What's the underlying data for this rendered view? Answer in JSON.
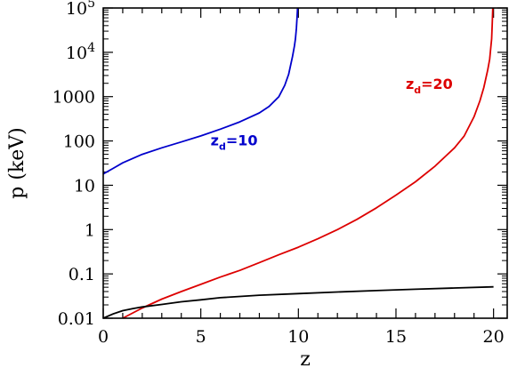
{
  "chart_data": {
    "type": "line",
    "xlabel": "z",
    "ylabel": "p  (keV)",
    "xlim": [
      0,
      20.7
    ],
    "ylim": [
      0.01,
      100000
    ],
    "yscale": "log",
    "xticks": [
      0,
      5,
      10,
      15,
      20
    ],
    "xtick_labels": [
      "0",
      "5",
      "10",
      "15",
      "20"
    ],
    "yticks": [
      0.01,
      0.1,
      1,
      10,
      100,
      1000,
      10000,
      100000
    ],
    "ytick_labels": [
      {
        "base": "0.01",
        "exp": ""
      },
      {
        "base": "0.1",
        "exp": ""
      },
      {
        "base": "1",
        "exp": ""
      },
      {
        "base": "10",
        "exp": ""
      },
      {
        "base": "100",
        "exp": ""
      },
      {
        "base": "1000",
        "exp": ""
      },
      {
        "base": "10",
        "exp": "4"
      },
      {
        "base": "10",
        "exp": "5"
      }
    ],
    "grid": false,
    "series": [
      {
        "color": "#0000cc",
        "x": [
          0,
          0.5,
          1,
          2,
          3,
          4,
          5,
          6,
          7,
          8,
          8.5,
          9,
          9.3,
          9.5,
          9.7,
          9.8,
          9.85,
          9.9,
          9.93,
          9.96
        ],
        "y": [
          18,
          24,
          32,
          50,
          70,
          95,
          130,
          185,
          270,
          430,
          600,
          1000,
          1800,
          3200,
          8000,
          14000,
          20000,
          35000,
          60000,
          100000
        ]
      },
      {
        "color": "#dd0000",
        "x": [
          1,
          2,
          3,
          4,
          5,
          6,
          7,
          8,
          9,
          10,
          11,
          12,
          13,
          14,
          15,
          16,
          17,
          18,
          18.5,
          19,
          19.3,
          19.5,
          19.7,
          19.8,
          19.85,
          19.9,
          19.93,
          19.96
        ],
        "y": [
          0.01,
          0.017,
          0.027,
          0.04,
          0.058,
          0.085,
          0.12,
          0.18,
          0.27,
          0.4,
          0.62,
          1,
          1.7,
          3.1,
          6,
          12,
          27,
          70,
          130,
          350,
          800,
          1600,
          4000,
          7000,
          12000,
          20000,
          40000,
          100000
        ]
      },
      {
        "color": "#000000",
        "x": [
          0,
          0.5,
          1,
          1.5,
          2,
          3,
          4,
          5,
          6,
          8,
          10,
          12,
          14,
          16,
          18,
          20
        ],
        "y": [
          0.01,
          0.0125,
          0.0148,
          0.0165,
          0.018,
          0.0205,
          0.0235,
          0.026,
          0.029,
          0.033,
          0.036,
          0.039,
          0.042,
          0.045,
          0.048,
          0.051
        ]
      }
    ],
    "annotations": [
      {
        "main": "z",
        "sub": "d",
        "rest": "=10",
        "x": 5.5,
        "y": 80,
        "color": "#0000cc"
      },
      {
        "main": "z",
        "sub": "d",
        "rest": "=20",
        "x": 15.5,
        "y": 1500,
        "color": "#dd0000"
      }
    ]
  }
}
